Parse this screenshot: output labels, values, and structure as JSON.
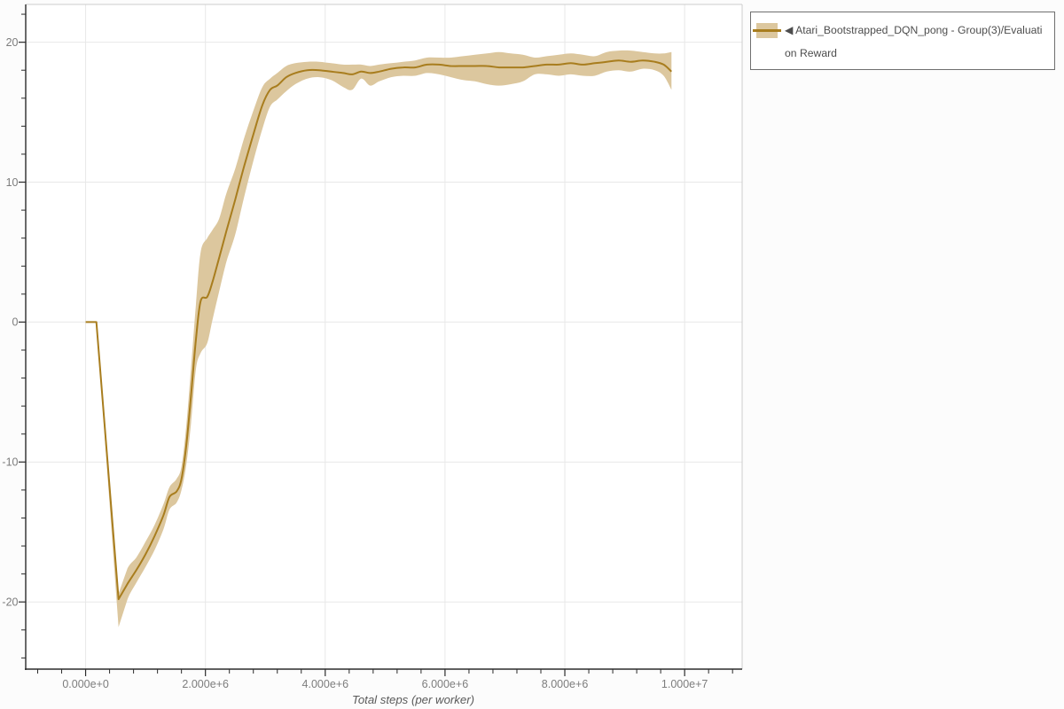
{
  "legend": {
    "label": "◀ Atari_Bootstrapped_DQN_pong - Group(3)/Evaluation Reward"
  },
  "chart_data": {
    "type": "line",
    "title": "",
    "xlabel": "Total steps (per worker)",
    "ylabel": "",
    "grid": true,
    "legend_position": "outside-top-right",
    "xlim": [
      -1000000,
      10960000
    ],
    "ylim": [
      -24.8,
      22.7
    ],
    "x_ticks": {
      "values": [
        0,
        2000000,
        4000000,
        6000000,
        8000000,
        10000000
      ],
      "labels": [
        "0.000e+0",
        "2.000e+6",
        "4.000e+6",
        "6.000e+6",
        "8.000e+6",
        "1.000e+7"
      ],
      "minor_step": 400000,
      "minor_range": [
        -800000,
        10800000
      ]
    },
    "y_ticks": {
      "values": [
        20,
        10,
        0,
        -10,
        -20
      ],
      "labels": [
        "20",
        "10",
        "0",
        "-10",
        "-20"
      ],
      "minor_step": 2,
      "minor_range": [
        -24,
        22
      ]
    },
    "series": [
      {
        "name": "Atari_Bootstrapped_DQN_pong - Group(3)/Evaluation Reward",
        "line_color": "#a87d1e",
        "band_color": "#dcc79e",
        "points": [
          [
            0,
            0,
            0,
            0
          ],
          [
            180000,
            0,
            0,
            0
          ],
          [
            550000,
            -19.8,
            -21.8,
            -19.4
          ],
          [
            700000,
            -18.7,
            -19.8,
            -17.6
          ],
          [
            850000,
            -17.7,
            -18.6,
            -16.8
          ],
          [
            1000000,
            -16.6,
            -17.5,
            -15.7
          ],
          [
            1150000,
            -15.3,
            -16.3,
            -14.5
          ],
          [
            1300000,
            -13.8,
            -14.8,
            -13.0
          ],
          [
            1400000,
            -12.5,
            -13.4,
            -11.8
          ],
          [
            1520000,
            -12.1,
            -12.9,
            -11.2
          ],
          [
            1600000,
            -11.2,
            -12.0,
            -10.3
          ],
          [
            1680000,
            -8.8,
            -10.2,
            -7.4
          ],
          [
            1760000,
            -5.2,
            -7.2,
            -3.2
          ],
          [
            1840000,
            -1.3,
            -3.4,
            1.2
          ],
          [
            1920000,
            1.5,
            -2.2,
            5.0
          ],
          [
            2030000,
            1.8,
            -1.5,
            6.0
          ],
          [
            2120000,
            2.9,
            0.2,
            6.6
          ],
          [
            2230000,
            4.6,
            2.2,
            7.4
          ],
          [
            2350000,
            6.5,
            4.3,
            9.2
          ],
          [
            2500000,
            8.8,
            6.3,
            11.0
          ],
          [
            2650000,
            11.2,
            9.0,
            13.2
          ],
          [
            2800000,
            13.4,
            11.5,
            15.1
          ],
          [
            2950000,
            15.5,
            13.8,
            16.8
          ],
          [
            3080000,
            16.6,
            15.4,
            17.4
          ],
          [
            3200000,
            16.9,
            15.9,
            17.8
          ],
          [
            3350000,
            17.5,
            16.5,
            18.3
          ],
          [
            3500000,
            17.8,
            17.0,
            18.5
          ],
          [
            3700000,
            18.0,
            17.4,
            18.6
          ],
          [
            3900000,
            18.0,
            17.5,
            18.6
          ],
          [
            4100000,
            17.9,
            17.3,
            18.5
          ],
          [
            4300000,
            17.8,
            16.8,
            18.4
          ],
          [
            4450000,
            17.7,
            16.6,
            18.4
          ],
          [
            4600000,
            17.9,
            17.4,
            18.4
          ],
          [
            4750000,
            17.8,
            16.9,
            18.3
          ],
          [
            4900000,
            17.9,
            17.2,
            18.4
          ],
          [
            5100000,
            18.1,
            17.5,
            18.5
          ],
          [
            5300000,
            18.2,
            17.6,
            18.6
          ],
          [
            5500000,
            18.2,
            17.6,
            18.7
          ],
          [
            5700000,
            18.4,
            17.8,
            18.9
          ],
          [
            5900000,
            18.4,
            17.7,
            18.9
          ],
          [
            6100000,
            18.3,
            17.5,
            18.9
          ],
          [
            6300000,
            18.3,
            17.3,
            19.0
          ],
          [
            6500000,
            18.3,
            17.2,
            19.1
          ],
          [
            6700000,
            18.3,
            17.0,
            19.2
          ],
          [
            6900000,
            18.2,
            16.9,
            19.3
          ],
          [
            7100000,
            18.2,
            17.0,
            19.2
          ],
          [
            7300000,
            18.2,
            17.2,
            19.1
          ],
          [
            7500000,
            18.3,
            17.7,
            18.9
          ],
          [
            7700000,
            18.4,
            17.7,
            19.0
          ],
          [
            7900000,
            18.4,
            17.6,
            19.1
          ],
          [
            8100000,
            18.5,
            17.7,
            19.2
          ],
          [
            8300000,
            18.4,
            17.6,
            19.1
          ],
          [
            8500000,
            18.5,
            17.6,
            19.0
          ],
          [
            8700000,
            18.6,
            17.9,
            19.3
          ],
          [
            8900000,
            18.7,
            18.0,
            19.4
          ],
          [
            9100000,
            18.6,
            17.9,
            19.4
          ],
          [
            9300000,
            18.7,
            18.1,
            19.3
          ],
          [
            9500000,
            18.6,
            18.0,
            19.2
          ],
          [
            9650000,
            18.4,
            17.6,
            19.2
          ],
          [
            9780000,
            17.9,
            16.6,
            19.3
          ]
        ]
      }
    ],
    "style": {
      "plot_bg": "#ffffff",
      "grid_color": "#e8e8e8",
      "axis_color": "#2b2b2b",
      "border_color": "#cccccc",
      "tick_label_color": "#7d7d7d",
      "axis_title_color": "#5a5a5a"
    }
  }
}
